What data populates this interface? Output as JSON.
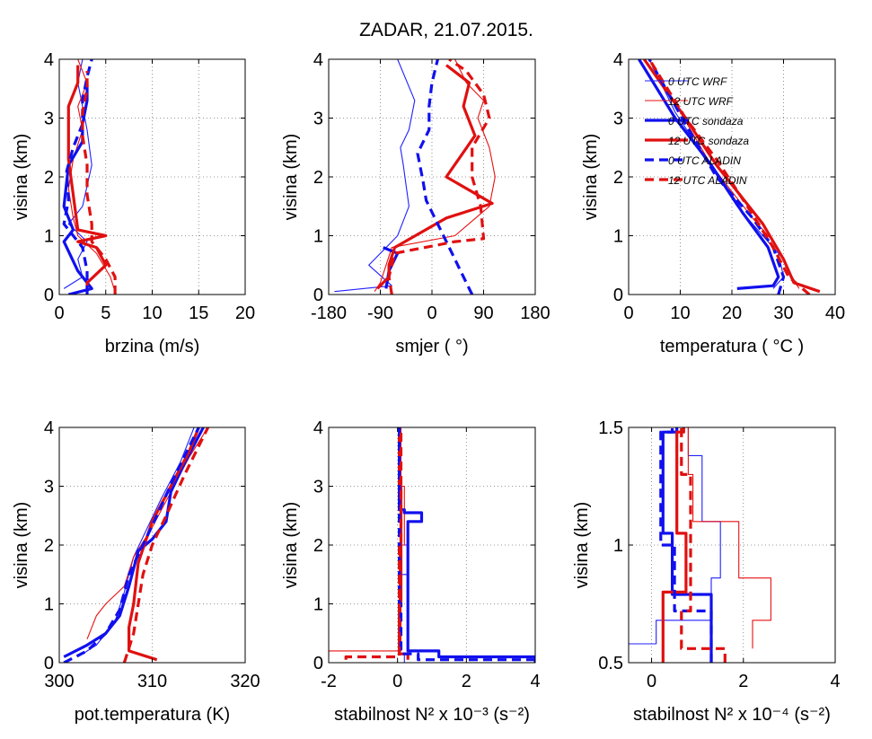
{
  "figure_title": "ZADAR, 21.07.2015.",
  "legend": [
    {
      "label": "0 UTC WRF",
      "color": "#2020ff",
      "style": "thin"
    },
    {
      "label": "12 UTC WRF",
      "color": "#e81010",
      "style": "thin"
    },
    {
      "label": "0 UTC sondaza",
      "color": "#1010ee",
      "style": "thick"
    },
    {
      "label": "12 UTC sondaza",
      "color": "#e01010",
      "style": "thick"
    },
    {
      "label": "0 UTC ALADIN",
      "color": "#1010ee",
      "style": "dashed"
    },
    {
      "label": "12 UTC ALADIN",
      "color": "#e01010",
      "style": "dashed"
    }
  ],
  "chart_data": [
    {
      "type": "line",
      "panel": "wind-speed",
      "xlabel": "brzina (m/s)",
      "ylabel": "visina (km)",
      "xlim": [
        0,
        20
      ],
      "ylim": [
        0,
        4
      ],
      "xticks": [
        "0",
        "5",
        "10",
        "15",
        "20"
      ],
      "yticks": [
        "0",
        "1",
        "2",
        "3",
        "4"
      ],
      "grid": true,
      "series": [
        {
          "ref": 0,
          "x": [
            0.5,
            2.5,
            2,
            3,
            1,
            2.5,
            3.5,
            3,
            2.5,
            2,
            2.5
          ],
          "y": [
            0.1,
            0.3,
            0.6,
            0.9,
            1.2,
            1.5,
            2.2,
            2.8,
            3.2,
            3.6,
            4.0
          ]
        },
        {
          "ref": 1,
          "x": [
            6,
            5.5,
            4,
            2,
            1.5,
            1,
            1.5,
            2.5,
            2,
            3,
            2
          ],
          "y": [
            0.05,
            0.3,
            0.7,
            1.0,
            1.3,
            1.8,
            2.3,
            2.8,
            3.2,
            3.6,
            4.0
          ]
        },
        {
          "ref": 2,
          "x": [
            1,
            3.5,
            2,
            0.5,
            1.5,
            0.5,
            1,
            2.5,
            2.5,
            3,
            3
          ],
          "y": [
            0.0,
            0.1,
            0.4,
            0.9,
            1.1,
            1.5,
            2.2,
            2.6,
            2.9,
            3.3,
            3.6
          ]
        },
        {
          "ref": 3,
          "x": [
            3,
            3,
            5,
            4,
            2,
            5,
            2,
            1,
            1,
            2,
            2
          ],
          "y": [
            0.05,
            0.2,
            0.5,
            0.8,
            0.9,
            1.0,
            1.1,
            2.3,
            3.2,
            3.6,
            3.9
          ]
        },
        {
          "ref": 4,
          "x": [
            3,
            3,
            2.5,
            0.5,
            1,
            0.8,
            1.5,
            2.5,
            2.5,
            3,
            3.5
          ],
          "y": [
            0.0,
            0.4,
            0.8,
            1.2,
            1.6,
            2.1,
            2.5,
            2.9,
            3.3,
            3.7,
            4.0
          ]
        },
        {
          "ref": 5,
          "x": [
            6,
            6,
            5,
            3.5,
            3.5,
            3,
            3,
            2.5,
            2.5,
            3,
            3
          ],
          "y": [
            0.0,
            0.3,
            0.6,
            0.9,
            1.2,
            1.7,
            2.2,
            2.7,
            3.1,
            3.5,
            3.8
          ]
        }
      ]
    },
    {
      "type": "line",
      "panel": "wind-direction",
      "xlabel": "smjer ( °)",
      "ylabel": "visina (km)",
      "xlim": [
        -180,
        180
      ],
      "ylim": [
        0,
        4
      ],
      "xticks": [
        "-180",
        "-90",
        "0",
        "90",
        "180"
      ],
      "yticks": [
        "0",
        "1",
        "2",
        "3",
        "4"
      ],
      "grid": true,
      "series": [
        {
          "ref": 0,
          "x": [
            -170,
            -120,
            -70,
            -110,
            -70,
            -60,
            -40,
            -50,
            -55,
            -40,
            -30,
            -60
          ],
          "y": [
            0.05,
            0.1,
            0.15,
            0.5,
            0.9,
            1.0,
            1.5,
            2.2,
            2.5,
            2.8,
            3.3,
            4.0
          ]
        },
        {
          "ref": 1,
          "x": [
            -100,
            -90,
            -80,
            -70,
            40,
            100,
            110,
            100,
            80,
            90,
            60,
            40
          ],
          "y": [
            0.05,
            0.2,
            0.5,
            0.8,
            1.0,
            1.5,
            2.0,
            2.5,
            3.0,
            3.3,
            3.6,
            4.0
          ]
        },
        {
          "ref": 2,
          "x": [
            -80,
            -75,
            -60,
            -85
          ],
          "y": [
            0.1,
            0.4,
            0.7,
            0.8
          ]
        },
        {
          "ref": 3,
          "x": [
            -95,
            -75,
            -75,
            -65,
            25,
            105,
            25,
            75,
            55,
            65,
            25
          ],
          "y": [
            0.1,
            0.3,
            0.5,
            0.8,
            1.3,
            1.55,
            2.0,
            2.7,
            3.2,
            3.6,
            3.9
          ]
        },
        {
          "ref": 4,
          "x": [
            70,
            50,
            30,
            10,
            -10,
            -15,
            -25,
            -5,
            -5,
            0,
            10
          ],
          "y": [
            0.0,
            0.4,
            0.8,
            1.2,
            1.6,
            1.9,
            2.4,
            2.8,
            3.2,
            3.6,
            4.0
          ]
        },
        {
          "ref": 5,
          "x": [
            -70,
            -75,
            -65,
            40,
            90,
            85,
            70,
            70,
            100,
            90,
            60,
            30
          ],
          "y": [
            0.0,
            0.3,
            0.7,
            0.9,
            0.95,
            1.5,
            2.0,
            2.5,
            3.0,
            3.4,
            3.8,
            4.0
          ]
        }
      ]
    },
    {
      "type": "line",
      "panel": "temperature",
      "xlabel": "temperatura ( °C )",
      "ylabel": "visina (km)",
      "xlim": [
        0,
        40
      ],
      "ylim": [
        0,
        4
      ],
      "xticks": [
        "0",
        "10",
        "20",
        "30",
        "40"
      ],
      "yticks": [
        "0",
        "1",
        "2",
        "3",
        "4"
      ],
      "grid": true,
      "series": [
        {
          "ref": 0,
          "x": [
            28,
            30,
            29,
            26,
            21,
            15,
            9,
            4
          ],
          "y": [
            0.1,
            0.3,
            0.7,
            1.0,
            1.5,
            2.3,
            3.1,
            4.0
          ]
        },
        {
          "ref": 1,
          "x": [
            33,
            31,
            28,
            24,
            16,
            10,
            4
          ],
          "y": [
            0.1,
            0.4,
            0.9,
            1.3,
            2.2,
            3.1,
            4.0
          ]
        },
        {
          "ref": 2,
          "x": [
            21,
            28,
            29,
            27,
            22,
            16,
            9,
            2
          ],
          "y": [
            0.1,
            0.15,
            0.3,
            0.8,
            1.4,
            2.2,
            3.0,
            4.0
          ]
        },
        {
          "ref": 3,
          "x": [
            37,
            32,
            30,
            26,
            17,
            11,
            3
          ],
          "y": [
            0.05,
            0.2,
            0.6,
            1.2,
            2.2,
            3.0,
            4.0
          ]
        },
        {
          "ref": 4,
          "x": [
            29,
            30,
            28,
            24,
            17,
            11,
            4
          ],
          "y": [
            0.0,
            0.3,
            0.8,
            1.3,
            2.0,
            2.9,
            4.0
          ]
        },
        {
          "ref": 5,
          "x": [
            35,
            31,
            28,
            23,
            17,
            11,
            4
          ],
          "y": [
            0.0,
            0.3,
            0.8,
            1.5,
            2.3,
            3.0,
            4.0
          ]
        }
      ]
    },
    {
      "type": "line",
      "panel": "potential-temperature",
      "xlabel": "pot.temperatura (K)",
      "ylabel": "visina (km)",
      "xlim": [
        300,
        320
      ],
      "ylim": [
        0,
        4
      ],
      "xticks": [
        "300",
        "310",
        "320"
      ],
      "yticks": [
        "0",
        "1",
        "2",
        "3",
        "4"
      ],
      "grid": true,
      "series": [
        {
          "ref": 0,
          "x": [
            302,
            304,
            306,
            307,
            308,
            309.5,
            311,
            313,
            314.5
          ],
          "y": [
            0.1,
            0.3,
            0.7,
            1.2,
            1.8,
            2.3,
            2.8,
            3.4,
            4.0
          ]
        },
        {
          "ref": 1,
          "x": [
            303,
            304,
            305,
            307,
            308,
            310,
            312,
            314,
            316
          ],
          "y": [
            0.4,
            0.8,
            1.0,
            1.3,
            1.8,
            2.3,
            2.9,
            3.5,
            4.0
          ]
        },
        {
          "ref": 2,
          "x": [
            300.5,
            303,
            305,
            306.5,
            307.5,
            308.5,
            310,
            311.5,
            312,
            313.5,
            315.5
          ],
          "y": [
            0.1,
            0.3,
            0.5,
            0.8,
            1.3,
            1.9,
            2.1,
            2.4,
            2.9,
            3.4,
            4.0
          ]
        },
        {
          "ref": 3,
          "x": [
            310.5,
            307.5,
            307.5,
            308,
            308.5,
            310,
            312,
            314,
            315
          ],
          "y": [
            0.05,
            0.2,
            0.6,
            1.0,
            1.7,
            2.4,
            3.0,
            3.6,
            4.0
          ]
        },
        {
          "ref": 4,
          "x": [
            300.5,
            303,
            305,
            306.5,
            307.5,
            309,
            310.5,
            312.5,
            315
          ],
          "y": [
            0.0,
            0.2,
            0.5,
            0.9,
            1.5,
            2.0,
            2.5,
            3.2,
            4.0
          ]
        },
        {
          "ref": 5,
          "x": [
            307,
            308,
            308.5,
            309,
            310,
            311.5,
            313.5,
            316
          ],
          "y": [
            0.0,
            0.5,
            1.0,
            1.5,
            2.0,
            2.5,
            3.2,
            4.0
          ]
        }
      ]
    },
    {
      "type": "line",
      "panel": "stability-N2-e-3",
      "xlabel": "stabilnost N² x 10⁻³ (s⁻²)",
      "ylabel": "visina (km)",
      "xlim": [
        -2,
        4
      ],
      "ylim": [
        0,
        4
      ],
      "xticks": [
        "-2",
        "0",
        "2",
        "4"
      ],
      "yticks": [
        "0",
        "1",
        "2",
        "3",
        "4"
      ],
      "grid": true,
      "series": [
        {
          "ref": 0,
          "x": [
            0.2,
            0.2,
            0.05,
            0.05,
            0.1,
            0.1,
            0.3,
            0.3,
            0.1,
            0.1,
            0.05,
            0.05
          ],
          "y": [
            0.0,
            0.15,
            0.15,
            0.5,
            0.5,
            1.5,
            1.5,
            2.0,
            2.0,
            3.0,
            3.0,
            4.0
          ]
        },
        {
          "ref": 1,
          "x": [
            -2,
            -2,
            0.1,
            0.1,
            0.05,
            0.05,
            0.2,
            0.2,
            0.1,
            0.1
          ],
          "y": [
            0.1,
            0.2,
            0.2,
            1.0,
            1.0,
            2.0,
            2.0,
            3.0,
            3.0,
            4.0
          ]
        },
        {
          "ref": 2,
          "x": [
            4,
            4,
            1.2,
            1.2,
            0.3,
            0.3,
            0.7,
            0.7,
            0.2,
            0.2,
            0.05,
            0.05
          ],
          "y": [
            0.0,
            0.1,
            0.1,
            0.2,
            0.2,
            2.4,
            2.4,
            2.55,
            2.55,
            2.6,
            2.6,
            4.0
          ]
        },
        {
          "ref": 3,
          "x": [
            0.3,
            0.3,
            0.05,
            0.05,
            0.1,
            0.1,
            0.05,
            0.05
          ],
          "y": [
            0.05,
            0.15,
            0.15,
            1.0,
            1.0,
            3.0,
            3.0,
            4.0
          ]
        },
        {
          "ref": 4,
          "x": [
            4,
            0.6,
            0.6,
            0.1,
            0.1,
            0.05,
            0.05
          ],
          "y": [
            0.05,
            0.05,
            0.15,
            0.15,
            1.0,
            1.0,
            4.0
          ]
        },
        {
          "ref": 5,
          "x": [
            -1.5,
            -1.5,
            0.05,
            0.05,
            0.1,
            0.1
          ],
          "y": [
            0.05,
            0.1,
            0.1,
            2.0,
            2.0,
            4.0
          ]
        }
      ]
    },
    {
      "type": "line",
      "panel": "stability-N2-e-4",
      "xlabel": "stabilnost N² x 10⁻⁴ (s⁻²)",
      "ylabel": "visina (km)",
      "xlim": [
        -0.5,
        4
      ],
      "ylim": [
        0.5,
        1.5
      ],
      "xticks": [
        "0",
        "2",
        "4"
      ],
      "yticks": [
        "0.5",
        "1",
        "1.5"
      ],
      "grid": true,
      "series": [
        {
          "ref": 0,
          "x": [
            -0.5,
            -0.5,
            0.1,
            0.1,
            1.3,
            1.3,
            1.5,
            1.5,
            1.1,
            1.1,
            0.8,
            0.8
          ],
          "y": [
            0.58,
            0.58,
            0.58,
            0.68,
            0.68,
            0.86,
            0.86,
            1.1,
            1.1,
            1.38,
            1.38,
            1.5
          ]
        },
        {
          "ref": 1,
          "x": [
            2.2,
            2.2,
            2.6,
            2.6,
            1.9,
            1.9,
            0.9,
            0.9,
            0.8,
            0.8
          ],
          "y": [
            0.56,
            0.68,
            0.68,
            0.86,
            0.86,
            1.1,
            1.1,
            1.3,
            1.3,
            1.5
          ]
        },
        {
          "ref": 2,
          "x": [
            1.3,
            1.3,
            0.45,
            0.45,
            0.25,
            0.25,
            0.55,
            0.55
          ],
          "y": [
            0.5,
            0.79,
            0.79,
            1.05,
            1.05,
            1.48,
            1.48,
            1.5
          ]
        },
        {
          "ref": 3,
          "x": [
            0.25,
            0.25,
            0.75,
            0.75,
            0.55,
            0.55,
            0.7,
            0.7
          ],
          "y": [
            0.5,
            0.8,
            0.8,
            1.05,
            1.05,
            1.48,
            1.48,
            1.5
          ]
        },
        {
          "ref": 4,
          "x": [
            1.3,
            1.3,
            0.5,
            0.5,
            0.2,
            0.2,
            0.45,
            0.45
          ],
          "y": [
            0.5,
            0.72,
            0.72,
            1.0,
            1.0,
            1.48,
            1.48,
            1.5
          ]
        },
        {
          "ref": 5,
          "x": [
            1.6,
            1.6,
            0.65,
            0.65,
            0.85,
            0.85,
            0.65,
            0.65
          ],
          "y": [
            0.5,
            0.56,
            0.56,
            0.72,
            0.72,
            1.3,
            1.3,
            1.5
          ]
        }
      ]
    }
  ]
}
